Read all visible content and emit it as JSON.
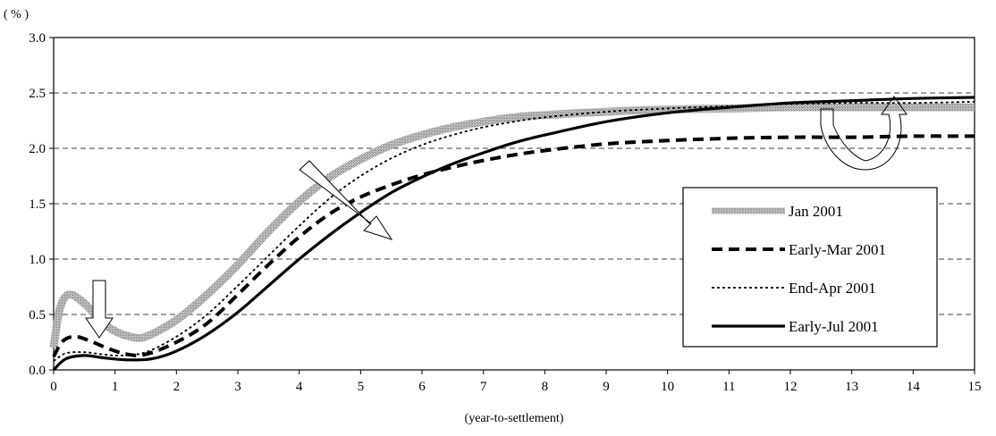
{
  "chart_data": {
    "type": "line",
    "y_unit_label": "( % )",
    "xlabel": "(year-to-settlement)",
    "xlim": [
      0,
      15
    ],
    "ylim": [
      0,
      3.0
    ],
    "x_ticks": [
      "0",
      "1",
      "2",
      "3",
      "4",
      "5",
      "6",
      "7",
      "8",
      "9",
      "10",
      "11",
      "12",
      "13",
      "14",
      "15"
    ],
    "y_ticks": [
      "0.0",
      "0.5",
      "1.0",
      "1.5",
      "2.0",
      "2.5",
      "3.0"
    ],
    "grid": "horizontal dashed",
    "legend_position": "right",
    "series": [
      {
        "name": "Jan 2001",
        "style": "gray-hatched",
        "color": "#a0a0a0",
        "points": [
          [
            0,
            0.2
          ],
          [
            0.1,
            0.55
          ],
          [
            0.25,
            0.68
          ],
          [
            0.5,
            0.6
          ],
          [
            0.75,
            0.45
          ],
          [
            1,
            0.35
          ],
          [
            1.25,
            0.3
          ],
          [
            1.5,
            0.3
          ],
          [
            2,
            0.45
          ],
          [
            2.5,
            0.68
          ],
          [
            3,
            0.95
          ],
          [
            3.5,
            1.25
          ],
          [
            4,
            1.52
          ],
          [
            4.5,
            1.74
          ],
          [
            5,
            1.9
          ],
          [
            5.5,
            2.03
          ],
          [
            6,
            2.12
          ],
          [
            6.5,
            2.19
          ],
          [
            7,
            2.24
          ],
          [
            7.5,
            2.28
          ],
          [
            8,
            2.3
          ],
          [
            9,
            2.33
          ],
          [
            10,
            2.35
          ],
          [
            11,
            2.36
          ],
          [
            12,
            2.37
          ],
          [
            13,
            2.37
          ],
          [
            14,
            2.37
          ],
          [
            15,
            2.37
          ]
        ]
      },
      {
        "name": "Early-Mar 2001",
        "style": "bold-dashed",
        "color": "#000000",
        "points": [
          [
            0,
            0.12
          ],
          [
            0.15,
            0.26
          ],
          [
            0.35,
            0.3
          ],
          [
            0.6,
            0.26
          ],
          [
            0.9,
            0.19
          ],
          [
            1.2,
            0.14
          ],
          [
            1.5,
            0.14
          ],
          [
            2,
            0.25
          ],
          [
            2.5,
            0.42
          ],
          [
            3,
            0.68
          ],
          [
            3.5,
            0.95
          ],
          [
            4,
            1.2
          ],
          [
            4.5,
            1.41
          ],
          [
            5,
            1.56
          ],
          [
            5.5,
            1.67
          ],
          [
            6,
            1.76
          ],
          [
            6.5,
            1.83
          ],
          [
            7,
            1.89
          ],
          [
            7.5,
            1.94
          ],
          [
            8,
            1.98
          ],
          [
            9,
            2.04
          ],
          [
            10,
            2.07
          ],
          [
            11,
            2.09
          ],
          [
            12,
            2.1
          ],
          [
            13,
            2.1
          ],
          [
            14,
            2.11
          ],
          [
            15,
            2.11
          ]
        ]
      },
      {
        "name": "End-Apr 2001",
        "style": "dotted",
        "color": "#000000",
        "points": [
          [
            0,
            0.08
          ],
          [
            0.2,
            0.15
          ],
          [
            0.5,
            0.16
          ],
          [
            0.8,
            0.14
          ],
          [
            1.1,
            0.13
          ],
          [
            1.5,
            0.16
          ],
          [
            2,
            0.3
          ],
          [
            2.5,
            0.5
          ],
          [
            3,
            0.76
          ],
          [
            3.5,
            1.03
          ],
          [
            4,
            1.3
          ],
          [
            4.5,
            1.55
          ],
          [
            5,
            1.75
          ],
          [
            5.5,
            1.91
          ],
          [
            6,
            2.03
          ],
          [
            6.5,
            2.12
          ],
          [
            7,
            2.19
          ],
          [
            7.5,
            2.24
          ],
          [
            8,
            2.28
          ],
          [
            9,
            2.33
          ],
          [
            10,
            2.36
          ],
          [
            11,
            2.38
          ],
          [
            12,
            2.4
          ],
          [
            13,
            2.41
          ],
          [
            14,
            2.41
          ],
          [
            15,
            2.42
          ]
        ]
      },
      {
        "name": "Early-Jul 2001",
        "style": "solid-bold",
        "color": "#000000",
        "points": [
          [
            0,
            0.0
          ],
          [
            0.2,
            0.1
          ],
          [
            0.5,
            0.13
          ],
          [
            0.8,
            0.11
          ],
          [
            1.2,
            0.09
          ],
          [
            1.6,
            0.1
          ],
          [
            2,
            0.17
          ],
          [
            2.5,
            0.32
          ],
          [
            3,
            0.52
          ],
          [
            3.5,
            0.76
          ],
          [
            4,
            1.0
          ],
          [
            4.5,
            1.22
          ],
          [
            5,
            1.42
          ],
          [
            5.5,
            1.6
          ],
          [
            6,
            1.74
          ],
          [
            6.5,
            1.86
          ],
          [
            7,
            1.96
          ],
          [
            7.5,
            2.05
          ],
          [
            8,
            2.12
          ],
          [
            9,
            2.24
          ],
          [
            10,
            2.32
          ],
          [
            11,
            2.37
          ],
          [
            12,
            2.41
          ],
          [
            13,
            2.43
          ],
          [
            14,
            2.45
          ],
          [
            15,
            2.46
          ]
        ]
      }
    ]
  }
}
